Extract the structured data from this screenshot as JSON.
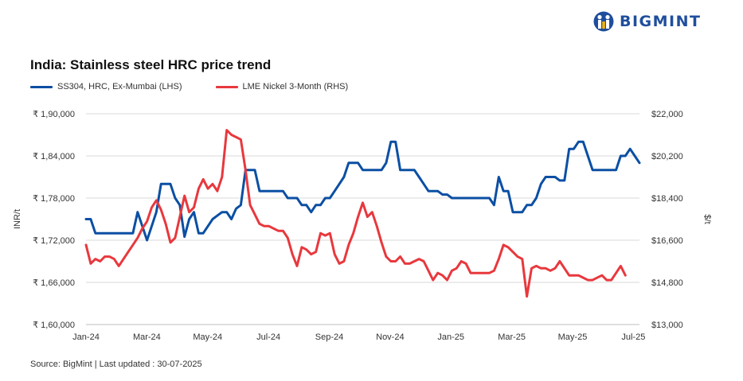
{
  "brand": {
    "name": "BIGMINT",
    "color": "#1f4e9c"
  },
  "footer": {
    "source": "Source: BigMint | Last updated : 30-07-2025"
  },
  "chart_data": {
    "type": "line",
    "title": "India: Stainless steel HRC price trend",
    "ylabel": "INR/t",
    "y2label": "$/t",
    "ylim": [
      160000,
      190000
    ],
    "y2lim": [
      13000,
      22000
    ],
    "yticks": [
      "₹ 1,90,000",
      "₹ 1,84,000",
      "₹ 1,78,000",
      "₹ 1,72,000",
      "₹ 1,66,000",
      "₹ 1,60,000"
    ],
    "y2ticks": [
      "$22,000",
      "$20,200",
      "$18,400",
      "$16,600",
      "$14,800",
      "$13,000"
    ],
    "xticks": [
      "Jan-24",
      "Mar-24",
      "May-24",
      "Jul-24",
      "Sep-24",
      "Nov-24",
      "Jan-25",
      "Mar-25",
      "May-25",
      "Jul-25"
    ],
    "grid": "horizontal",
    "legend_position": "top-left",
    "series": [
      {
        "name": "SS304, HRC, Ex-Mumbai (LHS)",
        "axis": "left",
        "color": "#0b4fa3",
        "points": [
          [
            0,
            175000
          ],
          [
            1,
            175000
          ],
          [
            2,
            173000
          ],
          [
            3,
            173000
          ],
          [
            4,
            173000
          ],
          [
            5,
            173000
          ],
          [
            6,
            173000
          ],
          [
            7,
            173000
          ],
          [
            8,
            173000
          ],
          [
            9,
            173000
          ],
          [
            10,
            173000
          ],
          [
            11,
            176000
          ],
          [
            12,
            174000
          ],
          [
            13,
            172000
          ],
          [
            14,
            174000
          ],
          [
            15,
            176000
          ],
          [
            16,
            180000
          ],
          [
            17,
            180000
          ],
          [
            18,
            180000
          ],
          [
            19,
            178000
          ],
          [
            20,
            177000
          ],
          [
            21,
            172500
          ],
          [
            22,
            175000
          ],
          [
            23,
            176000
          ],
          [
            24,
            173000
          ],
          [
            25,
            173000
          ],
          [
            26,
            174000
          ],
          [
            27,
            175000
          ],
          [
            28,
            175500
          ],
          [
            29,
            176000
          ],
          [
            30,
            176000
          ],
          [
            31,
            175000
          ],
          [
            32,
            176500
          ],
          [
            33,
            177000
          ],
          [
            34,
            182000
          ],
          [
            35,
            182000
          ],
          [
            36,
            182000
          ],
          [
            37,
            179000
          ],
          [
            38,
            179000
          ],
          [
            39,
            179000
          ],
          [
            40,
            179000
          ],
          [
            41,
            179000
          ],
          [
            42,
            179000
          ],
          [
            43,
            178000
          ],
          [
            44,
            178000
          ],
          [
            45,
            178000
          ],
          [
            46,
            177000
          ],
          [
            47,
            177000
          ],
          [
            48,
            176000
          ],
          [
            49,
            177000
          ],
          [
            50,
            177000
          ],
          [
            51,
            178000
          ],
          [
            52,
            178000
          ],
          [
            53,
            179000
          ],
          [
            54,
            180000
          ],
          [
            55,
            181000
          ],
          [
            56,
            183000
          ],
          [
            57,
            183000
          ],
          [
            58,
            183000
          ],
          [
            59,
            182000
          ],
          [
            60,
            182000
          ],
          [
            61,
            182000
          ],
          [
            62,
            182000
          ],
          [
            63,
            182000
          ],
          [
            64,
            183000
          ],
          [
            65,
            186000
          ],
          [
            66,
            186000
          ],
          [
            67,
            182000
          ],
          [
            68,
            182000
          ],
          [
            69,
            182000
          ],
          [
            70,
            182000
          ],
          [
            71,
            181000
          ],
          [
            72,
            180000
          ],
          [
            73,
            179000
          ],
          [
            74,
            179000
          ],
          [
            75,
            179000
          ],
          [
            76,
            178500
          ],
          [
            77,
            178500
          ],
          [
            78,
            178000
          ],
          [
            79,
            178000
          ],
          [
            80,
            178000
          ],
          [
            81,
            178000
          ],
          [
            82,
            178000
          ],
          [
            83,
            178000
          ],
          [
            84,
            178000
          ],
          [
            85,
            178000
          ],
          [
            86,
            178000
          ],
          [
            87,
            177000
          ],
          [
            88,
            181000
          ],
          [
            89,
            179000
          ],
          [
            90,
            179000
          ],
          [
            91,
            176000
          ],
          [
            92,
            176000
          ],
          [
            93,
            176000
          ],
          [
            94,
            177000
          ],
          [
            95,
            177000
          ],
          [
            96,
            178000
          ],
          [
            97,
            180000
          ],
          [
            98,
            181000
          ],
          [
            99,
            181000
          ],
          [
            100,
            181000
          ],
          [
            101,
            180500
          ],
          [
            102,
            180500
          ],
          [
            103,
            185000
          ],
          [
            104,
            185000
          ],
          [
            105,
            186000
          ],
          [
            106,
            186000
          ],
          [
            107,
            184000
          ],
          [
            108,
            182000
          ],
          [
            109,
            182000
          ],
          [
            110,
            182000
          ],
          [
            111,
            182000
          ],
          [
            112,
            182000
          ],
          [
            113,
            182000
          ],
          [
            114,
            184000
          ],
          [
            115,
            184000
          ],
          [
            116,
            185000
          ],
          [
            117,
            184000
          ],
          [
            118,
            183000
          ]
        ]
      },
      {
        "name": "LME Nickel 3-Month (RHS)",
        "axis": "right",
        "color": "#e8383d",
        "points": [
          [
            0,
            16400
          ],
          [
            1,
            15600
          ],
          [
            2,
            15800
          ],
          [
            3,
            15700
          ],
          [
            4,
            15900
          ],
          [
            5,
            15900
          ],
          [
            6,
            15800
          ],
          [
            7,
            15500
          ],
          [
            8,
            15800
          ],
          [
            9,
            16100
          ],
          [
            10,
            16400
          ],
          [
            11,
            16700
          ],
          [
            12,
            17100
          ],
          [
            13,
            17400
          ],
          [
            14,
            18000
          ],
          [
            15,
            18300
          ],
          [
            16,
            17900
          ],
          [
            17,
            17300
          ],
          [
            18,
            16500
          ],
          [
            19,
            16700
          ],
          [
            20,
            17600
          ],
          [
            21,
            18500
          ],
          [
            22,
            17800
          ],
          [
            23,
            18000
          ],
          [
            24,
            18800
          ],
          [
            25,
            19200
          ],
          [
            26,
            18800
          ],
          [
            27,
            19000
          ],
          [
            28,
            18700
          ],
          [
            29,
            19300
          ],
          [
            30,
            21300
          ],
          [
            31,
            21100
          ],
          [
            32,
            21000
          ],
          [
            33,
            20900
          ],
          [
            34,
            19600
          ],
          [
            35,
            18100
          ],
          [
            36,
            17700
          ],
          [
            37,
            17300
          ],
          [
            38,
            17200
          ],
          [
            39,
            17200
          ],
          [
            40,
            17100
          ],
          [
            41,
            17000
          ],
          [
            42,
            17000
          ],
          [
            43,
            16700
          ],
          [
            44,
            16000
          ],
          [
            45,
            15500
          ],
          [
            46,
            16300
          ],
          [
            47,
            16200
          ],
          [
            48,
            16000
          ],
          [
            49,
            16100
          ],
          [
            50,
            16900
          ],
          [
            51,
            16800
          ],
          [
            52,
            16900
          ],
          [
            53,
            16000
          ],
          [
            54,
            15600
          ],
          [
            55,
            15700
          ],
          [
            56,
            16400
          ],
          [
            57,
            16900
          ],
          [
            58,
            17600
          ],
          [
            59,
            18200
          ],
          [
            60,
            17600
          ],
          [
            61,
            17800
          ],
          [
            62,
            17200
          ],
          [
            63,
            16500
          ],
          [
            64,
            15900
          ],
          [
            65,
            15700
          ],
          [
            66,
            15700
          ],
          [
            67,
            15900
          ],
          [
            68,
            15600
          ],
          [
            69,
            15600
          ],
          [
            70,
            15700
          ],
          [
            71,
            15800
          ],
          [
            72,
            15700
          ],
          [
            73,
            15300
          ],
          [
            74,
            14900
          ],
          [
            75,
            15200
          ],
          [
            76,
            15100
          ],
          [
            77,
            14900
          ],
          [
            78,
            15300
          ],
          [
            79,
            15400
          ],
          [
            80,
            15700
          ],
          [
            81,
            15600
          ],
          [
            82,
            15200
          ],
          [
            83,
            15200
          ],
          [
            84,
            15200
          ],
          [
            85,
            15200
          ],
          [
            86,
            15200
          ],
          [
            87,
            15300
          ],
          [
            88,
            15800
          ],
          [
            89,
            16400
          ],
          [
            90,
            16300
          ],
          [
            91,
            16100
          ],
          [
            92,
            15900
          ],
          [
            93,
            15800
          ],
          [
            94,
            14200
          ],
          [
            95,
            15400
          ],
          [
            96,
            15500
          ],
          [
            97,
            15400
          ],
          [
            98,
            15400
          ],
          [
            99,
            15300
          ],
          [
            100,
            15400
          ],
          [
            101,
            15700
          ],
          [
            102,
            15400
          ],
          [
            103,
            15100
          ],
          [
            104,
            15100
          ],
          [
            105,
            15100
          ],
          [
            106,
            15000
          ],
          [
            107,
            14900
          ],
          [
            108,
            14900
          ],
          [
            109,
            15000
          ],
          [
            110,
            15100
          ],
          [
            111,
            14900
          ],
          [
            112,
            14900
          ],
          [
            113,
            15200
          ],
          [
            114,
            15500
          ],
          [
            115,
            15100
          ]
        ]
      }
    ]
  }
}
